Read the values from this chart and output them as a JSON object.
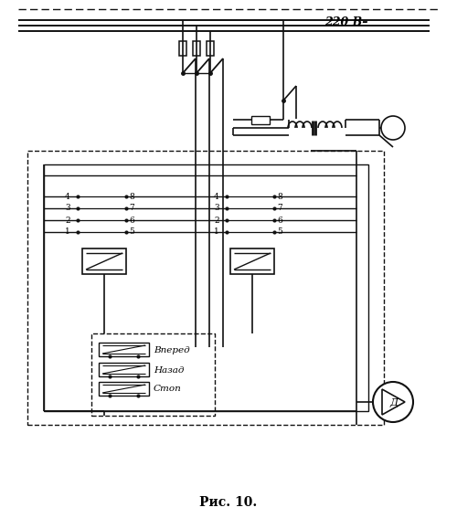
{
  "title": "Рис. 10.",
  "bg_color": "#ffffff",
  "line_color": "#111111",
  "fig_width": 5.0,
  "fig_height": 5.67,
  "dpi": 100,
  "label_220": "220 В–",
  "label_vpered": "Вперед",
  "label_nazad": "Назад",
  "label_stop": "Стоп",
  "label_d": "Д"
}
